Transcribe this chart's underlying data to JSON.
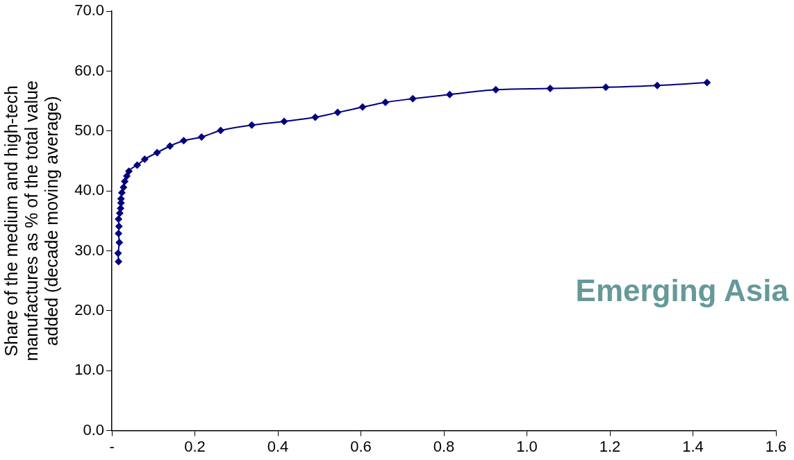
{
  "chart_data": {
    "type": "line",
    "ylabel": "Share of the medium and high-tech manufactures as % of the total value added (decade moving average)",
    "annotations": [
      "Emerging Asia"
    ],
    "series": [
      {
        "color": "#000080",
        "x": [
          0.016,
          0.015,
          0.018,
          0.016,
          0.017,
          0.016,
          0.019,
          0.021,
          0.022,
          0.022,
          0.024,
          0.028,
          0.031,
          0.036,
          0.041,
          0.061,
          0.079,
          0.109,
          0.14,
          0.173,
          0.216,
          0.262,
          0.337,
          0.415,
          0.49,
          0.544,
          0.604,
          0.659,
          0.725,
          0.814,
          0.925,
          1.056,
          1.19,
          1.314,
          1.434
        ],
        "values": [
          28.2,
          29.6,
          31.4,
          32.9,
          34.1,
          35.3,
          36.3,
          37.1,
          38.0,
          38.7,
          39.7,
          40.6,
          41.6,
          42.5,
          43.3,
          44.3,
          45.3,
          46.4,
          47.5,
          48.4,
          49.0,
          50.1,
          51.0,
          51.6,
          52.3,
          53.1,
          54.0,
          54.8,
          55.4,
          56.1,
          56.9,
          57.1,
          57.3,
          57.6,
          58.1
        ]
      }
    ],
    "xlim": [
      0,
      1.6
    ],
    "xticks": [
      {
        "value": 0,
        "label": "-"
      },
      0.2,
      0.4,
      0.6,
      0.8,
      {
        "value": 1,
        "label": "1.0"
      },
      1.2,
      1.4,
      1.6
    ],
    "ylim": [
      0,
      70
    ],
    "yticks": [
      {
        "value": 0,
        "label": "0.0"
      },
      {
        "value": 10,
        "label": "10.0"
      },
      {
        "value": 20,
        "label": "20.0"
      },
      {
        "value": 30,
        "label": "30.0"
      },
      {
        "value": 40,
        "label": "40.0"
      },
      {
        "value": 50,
        "label": "50.0"
      },
      {
        "value": 60,
        "label": "60.0"
      },
      {
        "value": 70,
        "label": "70.0"
      }
    ],
    "grid": false,
    "legend": false,
    "marker": "diamond",
    "line_style": "solid"
  }
}
